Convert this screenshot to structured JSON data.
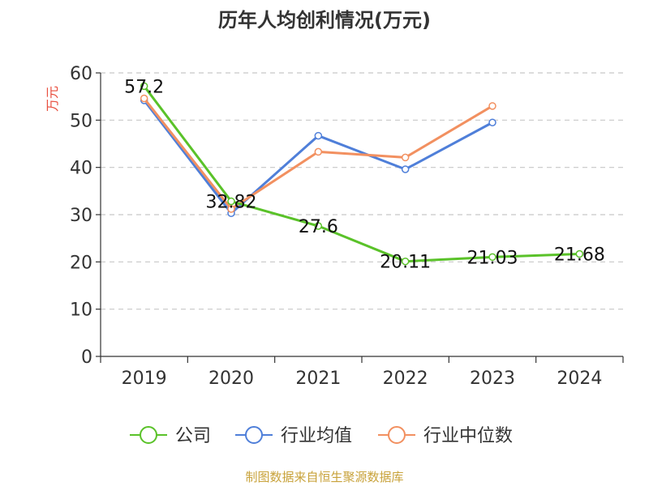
{
  "chart_data": {
    "type": "line",
    "title": "历年人均创利情况(万元)",
    "ylabel": "万元",
    "ylim": [
      0,
      60
    ],
    "yticks": [
      0,
      10,
      20,
      30,
      40,
      50,
      60
    ],
    "categories": [
      "2019",
      "2020",
      "2021",
      "2022",
      "2023",
      "2024"
    ],
    "grid": true,
    "legend_position": "bottom",
    "series": [
      {
        "name": "公司",
        "color": "#5ac229",
        "values": [
          57.2,
          32.82,
          27.6,
          20.11,
          21.03,
          21.68
        ],
        "labels": [
          "57.2",
          "32.82",
          "27.6",
          "20.11",
          "21.03",
          "21.68"
        ]
      },
      {
        "name": "行业均值",
        "color": "#4f7fd9",
        "values": [
          54.2,
          30.3,
          46.7,
          39.6,
          49.5,
          null
        ]
      },
      {
        "name": "行业中位数",
        "color": "#f29060",
        "values": [
          54.6,
          31.2,
          43.3,
          42.1,
          53.0,
          null
        ]
      }
    ]
  },
  "source_text": "制图数据来自恒生聚源数据库"
}
